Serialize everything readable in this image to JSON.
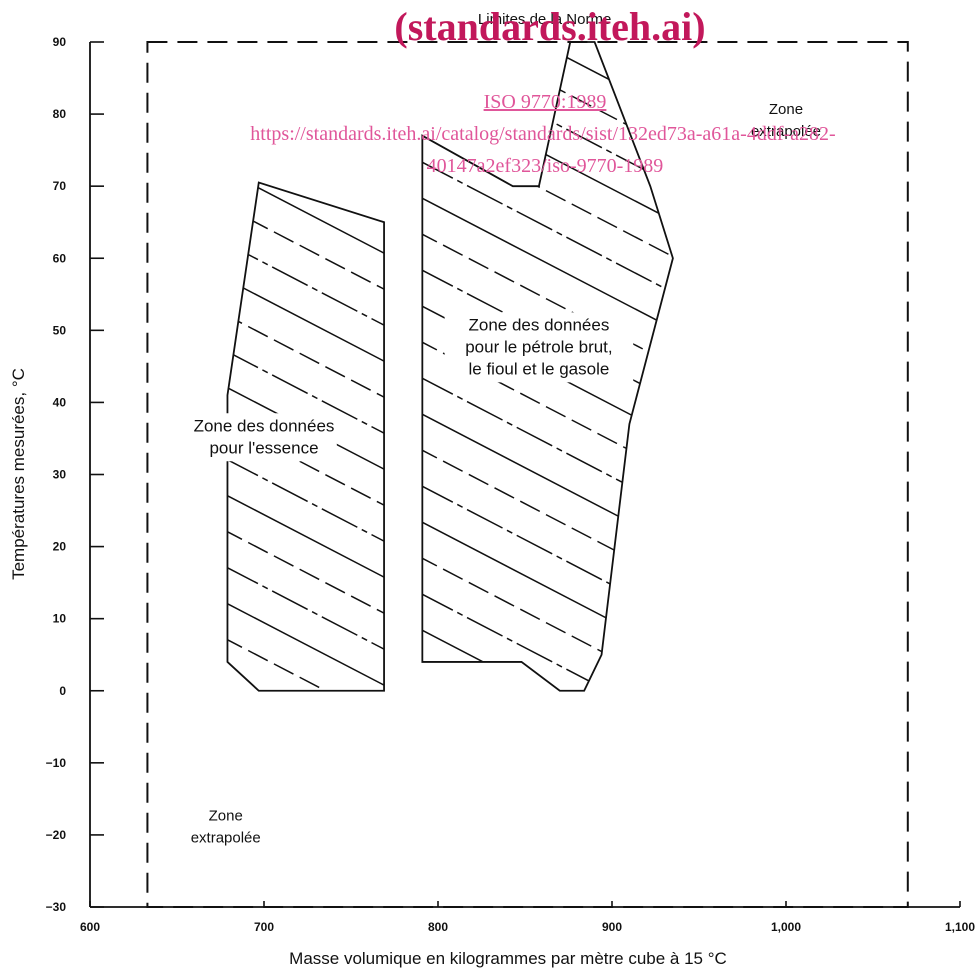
{
  "chart_data": {
    "type": "area",
    "title": "",
    "xlabel": "Masse volumique en kilogrammes par mètre cube à 15 °C",
    "ylabel": "Températures mesurées, °C",
    "xlim": [
      600,
      1100
    ],
    "ylim": [
      -30,
      90
    ],
    "x_ticks": [
      600,
      700,
      800,
      900,
      1000,
      1100
    ],
    "x_tick_labels": [
      "600",
      "700",
      "800",
      "900",
      "1,000",
      "1,100"
    ],
    "y_ticks": [
      -30,
      -20,
      -10,
      0,
      10,
      20,
      30,
      40,
      50,
      60,
      70,
      80,
      90
    ],
    "y_tick_labels": [
      "−30",
      "−20",
      "−10",
      "0",
      "10",
      "20",
      "30",
      "40",
      "50",
      "60",
      "70",
      "80",
      "90"
    ],
    "grid": false,
    "limits_box": {
      "label": "Limites de la Norme",
      "x": [
        633,
        1070
      ],
      "y": [
        -30,
        90
      ]
    },
    "zones": [
      {
        "label_lines": [
          "Zone des données",
          "pour l'essence"
        ],
        "label_at": [
          700,
          36
        ],
        "polygon": [
          [
            679,
            4
          ],
          [
            697,
            0
          ],
          [
            769,
            0
          ],
          [
            769,
            65
          ],
          [
            697,
            70.5
          ],
          [
            679,
            41
          ]
        ]
      },
      {
        "label_lines": [
          "Zone des données",
          "pour le pétrole brut,",
          "le fioul et le gasole"
        ],
        "label_at": [
          858,
          50
        ],
        "polygon": [
          [
            791,
            4
          ],
          [
            848,
            4
          ],
          [
            870,
            0
          ],
          [
            884,
            0
          ],
          [
            894,
            5
          ],
          [
            910,
            37
          ],
          [
            935,
            60
          ],
          [
            922,
            70
          ],
          [
            890,
            90
          ],
          [
            876,
            90
          ],
          [
            858,
            70
          ],
          [
            843,
            70
          ],
          [
            791,
            77
          ]
        ]
      }
    ],
    "annotations": [
      {
        "lines": [
          "Zone",
          "extrapolée"
        ],
        "at": [
          1000,
          80
        ]
      },
      {
        "lines": [
          "Zone",
          "extrapolée"
        ],
        "at": [
          678,
          -18
        ]
      }
    ]
  },
  "watermark": {
    "brand": "(standards.iteh.ai)",
    "code": "ISO 9770:1989",
    "url_line1": "https://standards.iteh.ai/catalog/standards/sist/132ed73a-a61a-4ddf-a282-",
    "url_line2": "40147a2ef323/iso-9770-1989"
  }
}
